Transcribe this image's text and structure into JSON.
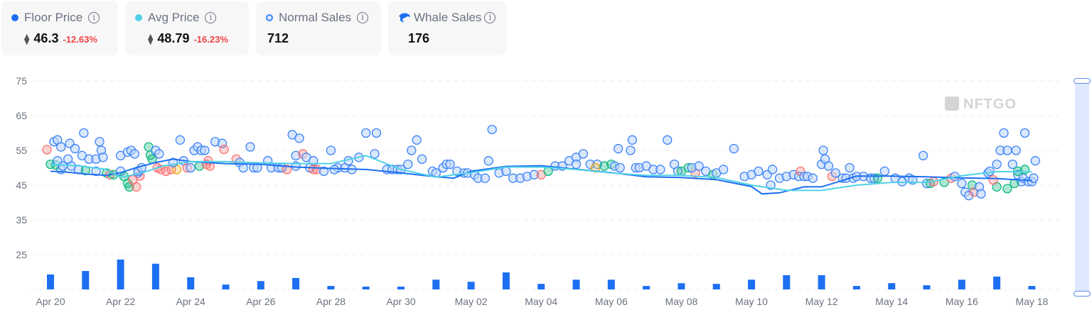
{
  "stats": [
    {
      "label": "Floor Price",
      "marker": "floor-dot",
      "color": "#1d6ff2",
      "value": "46.3",
      "change": "-12.63%",
      "currency_icon": "eth-icon"
    },
    {
      "label": "Avg Price",
      "marker": "avg-dot",
      "color": "#50d1e6",
      "value": "48.79",
      "change": "-16.23%",
      "currency_icon": "eth-icon"
    },
    {
      "label": "Normal Sales",
      "marker": "normal-sale-ring",
      "color": "#3b82f6",
      "value": "712"
    },
    {
      "label": "Whale Sales",
      "marker": "whale-icon",
      "color": "#1d6ff2",
      "value": "176"
    }
  ],
  "watermark": "NFTGO",
  "chart_data": {
    "type": "scatter",
    "title": "",
    "xlabel": "",
    "ylabel": "",
    "ylim": [
      15,
      75
    ],
    "yticks": [
      75,
      65,
      55,
      45,
      35,
      25
    ],
    "xticks": [
      "Apr 20",
      "Apr 22",
      "Apr 24",
      "Apr 26",
      "Apr 28",
      "Apr 30",
      "May 02",
      "May 04",
      "May 06",
      "May 08",
      "May 10",
      "May 12",
      "May 14",
      "May 16",
      "May 18"
    ],
    "grid": true,
    "legend": [
      "Floor Price",
      "Avg Price",
      "Normal Sales",
      "Whale Sales"
    ],
    "days": [
      "Apr 20",
      "Apr 21",
      "Apr 22",
      "Apr 23",
      "Apr 24",
      "Apr 25",
      "Apr 26",
      "Apr 27",
      "Apr 28",
      "Apr 29",
      "Apr 30",
      "May 01",
      "May 02",
      "May 03",
      "May 04",
      "May 05",
      "May 06",
      "May 07",
      "May 08",
      "May 09",
      "May 10",
      "May 11",
      "May 12",
      "May 13",
      "May 14",
      "May 15",
      "May 16",
      "May 17",
      "May 18"
    ],
    "volume_bars": [
      19.3,
      20.3,
      23.6,
      22.4,
      18.5,
      16.4,
      17.4,
      18.3,
      16.0,
      15.8,
      15.8,
      17.8,
      17.2,
      19.9,
      16.6,
      17.8,
      17.8,
      16.0,
      16.8,
      16.6,
      17.8,
      19.1,
      19.1,
      16.0,
      16.8,
      16.2,
      17.8,
      18.7,
      16.0
    ],
    "series": [
      {
        "name": "Floor Price",
        "type": "line",
        "color": "#1d6ff2",
        "points": [
          [
            0.0,
            49
          ],
          [
            0.4,
            48.8
          ],
          [
            1.0,
            48.2
          ],
          [
            1.6,
            47.8
          ],
          [
            2.0,
            48.6
          ],
          [
            2.5,
            50.2
          ],
          [
            3.0,
            51.5
          ],
          [
            3.5,
            52.5
          ],
          [
            4.0,
            51.8
          ],
          [
            5.0,
            51.2
          ],
          [
            6.0,
            51
          ],
          [
            7.0,
            50.2
          ],
          [
            8.0,
            49.8
          ],
          [
            9.0,
            49.5
          ],
          [
            10.0,
            48.5
          ],
          [
            11.0,
            47.4
          ],
          [
            11.5,
            47
          ],
          [
            12.0,
            49
          ],
          [
            13.0,
            50.4
          ],
          [
            14.0,
            50.6
          ],
          [
            15.0,
            49.6
          ],
          [
            16.0,
            48.6
          ],
          [
            17.0,
            47.4
          ],
          [
            18.0,
            47.2
          ],
          [
            19.0,
            46.6
          ],
          [
            20.0,
            44.6
          ],
          [
            20.3,
            42.5
          ],
          [
            20.8,
            42.8
          ],
          [
            21.5,
            44.5
          ],
          [
            22.0,
            44.5
          ],
          [
            23.0,
            47.6
          ],
          [
            24.0,
            47.6
          ],
          [
            25.0,
            47.4
          ],
          [
            26.0,
            47.1
          ],
          [
            27.0,
            46.9
          ],
          [
            28.0,
            46.3
          ]
        ]
      },
      {
        "name": "Avg Price",
        "type": "line",
        "color": "#50d1e6",
        "points": [
          [
            0.0,
            51
          ],
          [
            0.8,
            50.6
          ],
          [
            1.6,
            49.5
          ],
          [
            2.0,
            47.2
          ],
          [
            2.6,
            48.5
          ],
          [
            3.2,
            50.5
          ],
          [
            4.0,
            51.8
          ],
          [
            5.0,
            51.8
          ],
          [
            6.0,
            51.4
          ],
          [
            7.0,
            51.2
          ],
          [
            8.0,
            51.2
          ],
          [
            9.0,
            53.5
          ],
          [
            10.0,
            49.5
          ],
          [
            11.0,
            47.3
          ],
          [
            12.0,
            48.6
          ],
          [
            13.0,
            50.2
          ],
          [
            14.0,
            50.2
          ],
          [
            15.0,
            49.5
          ],
          [
            16.0,
            48.5
          ],
          [
            17.0,
            47.8
          ],
          [
            18.0,
            47.8
          ],
          [
            19.0,
            47.2
          ],
          [
            20.0,
            45
          ],
          [
            21.0,
            43.5
          ],
          [
            22.0,
            43.5
          ],
          [
            23.0,
            45
          ],
          [
            24.0,
            45.8
          ],
          [
            25.0,
            45.8
          ],
          [
            26.0,
            47.7
          ],
          [
            27.0,
            48.9
          ],
          [
            28.0,
            48.8
          ]
        ]
      }
    ],
    "scatter_points_note": "approximate sale prices; normal=blue, whale colored (green/red/amber)"
  },
  "sales": [
    [
      -0.1,
      55.2,
      "r"
    ],
    [
      0.1,
      57.5,
      "n"
    ],
    [
      0.2,
      58,
      "n"
    ],
    [
      0.3,
      56,
      "n"
    ],
    [
      0.55,
      57,
      "n"
    ],
    [
      0.7,
      55.5,
      "n"
    ],
    [
      0.3,
      49.5,
      "n"
    ],
    [
      0.6,
      50.5,
      "n"
    ],
    [
      0.0,
      51,
      "g"
    ],
    [
      0.15,
      50.8,
      "g"
    ],
    [
      0.35,
      50.5,
      "n"
    ],
    [
      0.8,
      49.5,
      "n"
    ],
    [
      1.0,
      49.2,
      "g"
    ],
    [
      0.5,
      52.5,
      "n"
    ],
    [
      0.2,
      52,
      "n"
    ],
    [
      0.95,
      60,
      "n"
    ],
    [
      0.9,
      53.5,
      "n"
    ],
    [
      1.1,
      52.5,
      "n"
    ],
    [
      1.3,
      52.5,
      "n"
    ],
    [
      1.4,
      57.5,
      "n"
    ],
    [
      1.45,
      55,
      "n"
    ],
    [
      1.5,
      53,
      "n"
    ],
    [
      1.6,
      48.5,
      "g"
    ],
    [
      1.7,
      48,
      "r"
    ],
    [
      1.8,
      48,
      "g"
    ],
    [
      1.3,
      49,
      "n"
    ],
    [
      2.0,
      53.5,
      "n"
    ],
    [
      2.2,
      54.5,
      "n"
    ],
    [
      2.3,
      55,
      "n"
    ],
    [
      2.4,
      54,
      "n"
    ],
    [
      2.0,
      49,
      "n"
    ],
    [
      2.1,
      47.5,
      "g"
    ],
    [
      2.2,
      45.5,
      "g"
    ],
    [
      2.25,
      44.5,
      "g"
    ],
    [
      2.35,
      46.5,
      "r"
    ],
    [
      2.5,
      48.5,
      "n"
    ],
    [
      2.55,
      47.6,
      "r"
    ],
    [
      2.45,
      44.5,
      "r"
    ],
    [
      2.5,
      49,
      "n"
    ],
    [
      2.6,
      50,
      "n"
    ],
    [
      2.8,
      56,
      "g"
    ],
    [
      2.85,
      53.6,
      "g"
    ],
    [
      2.9,
      52.5,
      "g"
    ],
    [
      3.0,
      55,
      "n"
    ],
    [
      3.1,
      54,
      "n"
    ],
    [
      3.05,
      50,
      "r"
    ],
    [
      3.15,
      49.5,
      "r"
    ],
    [
      3.3,
      49,
      "r"
    ],
    [
      3.45,
      49.5,
      "r"
    ],
    [
      3.6,
      49.5,
      "a"
    ],
    [
      3.5,
      51.5,
      "n"
    ],
    [
      3.7,
      58,
      "n"
    ],
    [
      3.8,
      52,
      "n"
    ],
    [
      3.9,
      50,
      "r"
    ],
    [
      4.0,
      50,
      "n"
    ],
    [
      4.1,
      55,
      "n"
    ],
    [
      4.2,
      56,
      "n"
    ],
    [
      4.3,
      55,
      "n"
    ],
    [
      4.4,
      55,
      "n"
    ],
    [
      4.25,
      50.5,
      "g"
    ],
    [
      4.45,
      51,
      "r"
    ],
    [
      4.5,
      52,
      "r"
    ],
    [
      4.55,
      50.5,
      "r"
    ],
    [
      4.7,
      57.5,
      "n"
    ],
    [
      4.9,
      57,
      "n"
    ],
    [
      4.95,
      55.3,
      "r"
    ],
    [
      5.3,
      52.5,
      "r"
    ],
    [
      5.4,
      51.5,
      "n"
    ],
    [
      5.5,
      50,
      "n"
    ],
    [
      5.7,
      56,
      "n"
    ],
    [
      5.8,
      50,
      "n"
    ],
    [
      5.9,
      50,
      "n"
    ],
    [
      6.2,
      52,
      "n"
    ],
    [
      6.3,
      50,
      "n"
    ],
    [
      6.5,
      50,
      "n"
    ],
    [
      6.6,
      50,
      "n"
    ],
    [
      6.75,
      49.5,
      "r"
    ],
    [
      6.9,
      59.5,
      "n"
    ],
    [
      7.0,
      53.5,
      "n"
    ],
    [
      7.1,
      58.5,
      "n"
    ],
    [
      7.0,
      50.5,
      "n"
    ],
    [
      7.2,
      54,
      "r"
    ],
    [
      7.3,
      53,
      "n"
    ],
    [
      7.4,
      50,
      "n"
    ],
    [
      7.5,
      52,
      "n"
    ],
    [
      7.5,
      49.5,
      "r"
    ],
    [
      7.6,
      49.5,
      "r"
    ],
    [
      7.8,
      49,
      "n"
    ],
    [
      8.0,
      55,
      "n"
    ],
    [
      8.2,
      50,
      "n"
    ],
    [
      8.4,
      50,
      "n"
    ],
    [
      8.1,
      49.5,
      "n"
    ],
    [
      8.5,
      52,
      "n"
    ],
    [
      8.6,
      49.5,
      "n"
    ],
    [
      8.8,
      53,
      "n"
    ],
    [
      9.0,
      60,
      "n"
    ],
    [
      9.3,
      60,
      "n"
    ],
    [
      9.25,
      54,
      "n"
    ],
    [
      9.6,
      49.5,
      "n"
    ],
    [
      9.75,
      49.5,
      "n"
    ],
    [
      9.9,
      49.5,
      "n"
    ],
    [
      10.0,
      49.5,
      "n"
    ],
    [
      10.2,
      51,
      "n"
    ],
    [
      10.45,
      58,
      "n"
    ],
    [
      10.3,
      55,
      "n"
    ],
    [
      10.6,
      52.5,
      "n"
    ],
    [
      10.9,
      49,
      "n"
    ],
    [
      11.0,
      48.5,
      "n"
    ],
    [
      11.2,
      50,
      "n"
    ],
    [
      11.3,
      51,
      "n"
    ],
    [
      11.4,
      51,
      "n"
    ],
    [
      11.6,
      49,
      "n"
    ],
    [
      11.8,
      48.5,
      "n"
    ],
    [
      11.9,
      48.5,
      "n"
    ],
    [
      12.1,
      48,
      "n"
    ],
    [
      12.2,
      47,
      "n"
    ],
    [
      12.5,
      52,
      "n"
    ],
    [
      12.4,
      47,
      "n"
    ],
    [
      12.8,
      48.5,
      "n"
    ],
    [
      12.6,
      61,
      "n"
    ],
    [
      13.0,
      49,
      "n"
    ],
    [
      13.2,
      47,
      "n"
    ],
    [
      13.4,
      47,
      "n"
    ],
    [
      13.6,
      47.5,
      "n"
    ],
    [
      13.8,
      48,
      "n"
    ],
    [
      14.0,
      48,
      "r"
    ],
    [
      14.2,
      49,
      "g"
    ],
    [
      14.4,
      50.5,
      "n"
    ],
    [
      14.6,
      50.5,
      "n"
    ],
    [
      14.8,
      52,
      "n"
    ],
    [
      15.0,
      53,
      "n"
    ],
    [
      15.2,
      54,
      "n"
    ],
    [
      15.0,
      51,
      "n"
    ],
    [
      15.4,
      51,
      "n"
    ],
    [
      15.6,
      51,
      "n"
    ],
    [
      15.55,
      50,
      "a"
    ],
    [
      15.8,
      50.5,
      "g"
    ],
    [
      16.0,
      51,
      "g"
    ],
    [
      16.1,
      50.5,
      "n"
    ],
    [
      16.2,
      55.5,
      "n"
    ],
    [
      16.25,
      50,
      "n"
    ],
    [
      16.6,
      58,
      "n"
    ],
    [
      16.55,
      55,
      "n"
    ],
    [
      16.7,
      50,
      "n"
    ],
    [
      16.8,
      50,
      "n"
    ],
    [
      17.0,
      50.5,
      "n"
    ],
    [
      17.2,
      49.5,
      "n"
    ],
    [
      17.4,
      49.5,
      "n"
    ],
    [
      17.6,
      58,
      "n"
    ],
    [
      17.8,
      51,
      "n"
    ],
    [
      17.9,
      49,
      "n"
    ],
    [
      18.0,
      49,
      "g"
    ],
    [
      18.2,
      50,
      "g"
    ],
    [
      18.4,
      48.5,
      "r"
    ],
    [
      18.3,
      50,
      "n"
    ],
    [
      18.5,
      50.5,
      "n"
    ],
    [
      18.7,
      49,
      "n"
    ],
    [
      18.9,
      48,
      "g"
    ],
    [
      19.0,
      48.5,
      "n"
    ],
    [
      19.2,
      49.5,
      "n"
    ],
    [
      19.5,
      55.5,
      "n"
    ],
    [
      19.8,
      47.5,
      "n"
    ],
    [
      20.0,
      48,
      "n"
    ],
    [
      20.2,
      49,
      "n"
    ],
    [
      20.45,
      48,
      "n"
    ],
    [
      20.55,
      45,
      "n"
    ],
    [
      20.6,
      49.5,
      "n"
    ],
    [
      20.8,
      47,
      "n"
    ],
    [
      21.0,
      47.5,
      "n"
    ],
    [
      21.2,
      48,
      "n"
    ],
    [
      21.35,
      47.5,
      "n"
    ],
    [
      21.4,
      49,
      "r"
    ],
    [
      21.5,
      47.5,
      "n"
    ],
    [
      21.6,
      47.5,
      "n"
    ],
    [
      21.75,
      47,
      "n"
    ],
    [
      22.0,
      51,
      "n"
    ],
    [
      22.05,
      55,
      "n"
    ],
    [
      22.1,
      52.5,
      "n"
    ],
    [
      22.2,
      50.5,
      "n"
    ],
    [
      22.3,
      47.5,
      "r"
    ],
    [
      22.4,
      48.5,
      "n"
    ],
    [
      22.6,
      47,
      "n"
    ],
    [
      22.7,
      47,
      "n"
    ],
    [
      22.8,
      50,
      "n"
    ],
    [
      22.9,
      47,
      "n"
    ],
    [
      23.0,
      47.5,
      "n"
    ],
    [
      23.2,
      47.5,
      "n"
    ],
    [
      23.4,
      47,
      "n"
    ],
    [
      23.5,
      47,
      "n"
    ],
    [
      23.6,
      47,
      "g"
    ],
    [
      23.8,
      49,
      "n"
    ],
    [
      24.1,
      47,
      "n"
    ],
    [
      24.3,
      46,
      "n"
    ],
    [
      24.5,
      47,
      "n"
    ],
    [
      24.6,
      46.5,
      "n"
    ],
    [
      24.9,
      53.5,
      "n"
    ],
    [
      25.0,
      45.5,
      "n"
    ],
    [
      25.1,
      45.5,
      "g"
    ],
    [
      25.2,
      46,
      "r"
    ],
    [
      25.5,
      45.8,
      "g"
    ],
    [
      25.7,
      47,
      "r"
    ],
    [
      25.8,
      47.5,
      "n"
    ],
    [
      26.0,
      45.5,
      "n"
    ],
    [
      26.1,
      43,
      "n"
    ],
    [
      26.2,
      42,
      "n"
    ],
    [
      26.3,
      45,
      "g"
    ],
    [
      26.35,
      43,
      "r"
    ],
    [
      26.5,
      44.5,
      "n"
    ],
    [
      26.55,
      42.5,
      "n"
    ],
    [
      26.75,
      48.5,
      "n"
    ],
    [
      26.8,
      49,
      "n"
    ],
    [
      27.0,
      51,
      "n"
    ],
    [
      27.1,
      55,
      "n"
    ],
    [
      27.3,
      55,
      "n"
    ],
    [
      27.45,
      51,
      "n"
    ],
    [
      27.6,
      48,
      "n"
    ],
    [
      27.7,
      46,
      "n"
    ],
    [
      27.75,
      47,
      "n"
    ],
    [
      27.9,
      46,
      "n"
    ],
    [
      28.0,
      46,
      "n"
    ],
    [
      27.2,
      60,
      "n"
    ],
    [
      27.8,
      60,
      "n"
    ],
    [
      27.55,
      55,
      "n"
    ],
    [
      28.1,
      52,
      "n"
    ],
    [
      27.6,
      49,
      "g"
    ],
    [
      27.8,
      49.5,
      "g"
    ],
    [
      28.05,
      47,
      "n"
    ],
    [
      27.5,
      45.5,
      "g"
    ],
    [
      27.3,
      44,
      "g"
    ],
    [
      27.0,
      44.5,
      "g"
    ],
    [
      26.9,
      46.5,
      "r"
    ]
  ]
}
